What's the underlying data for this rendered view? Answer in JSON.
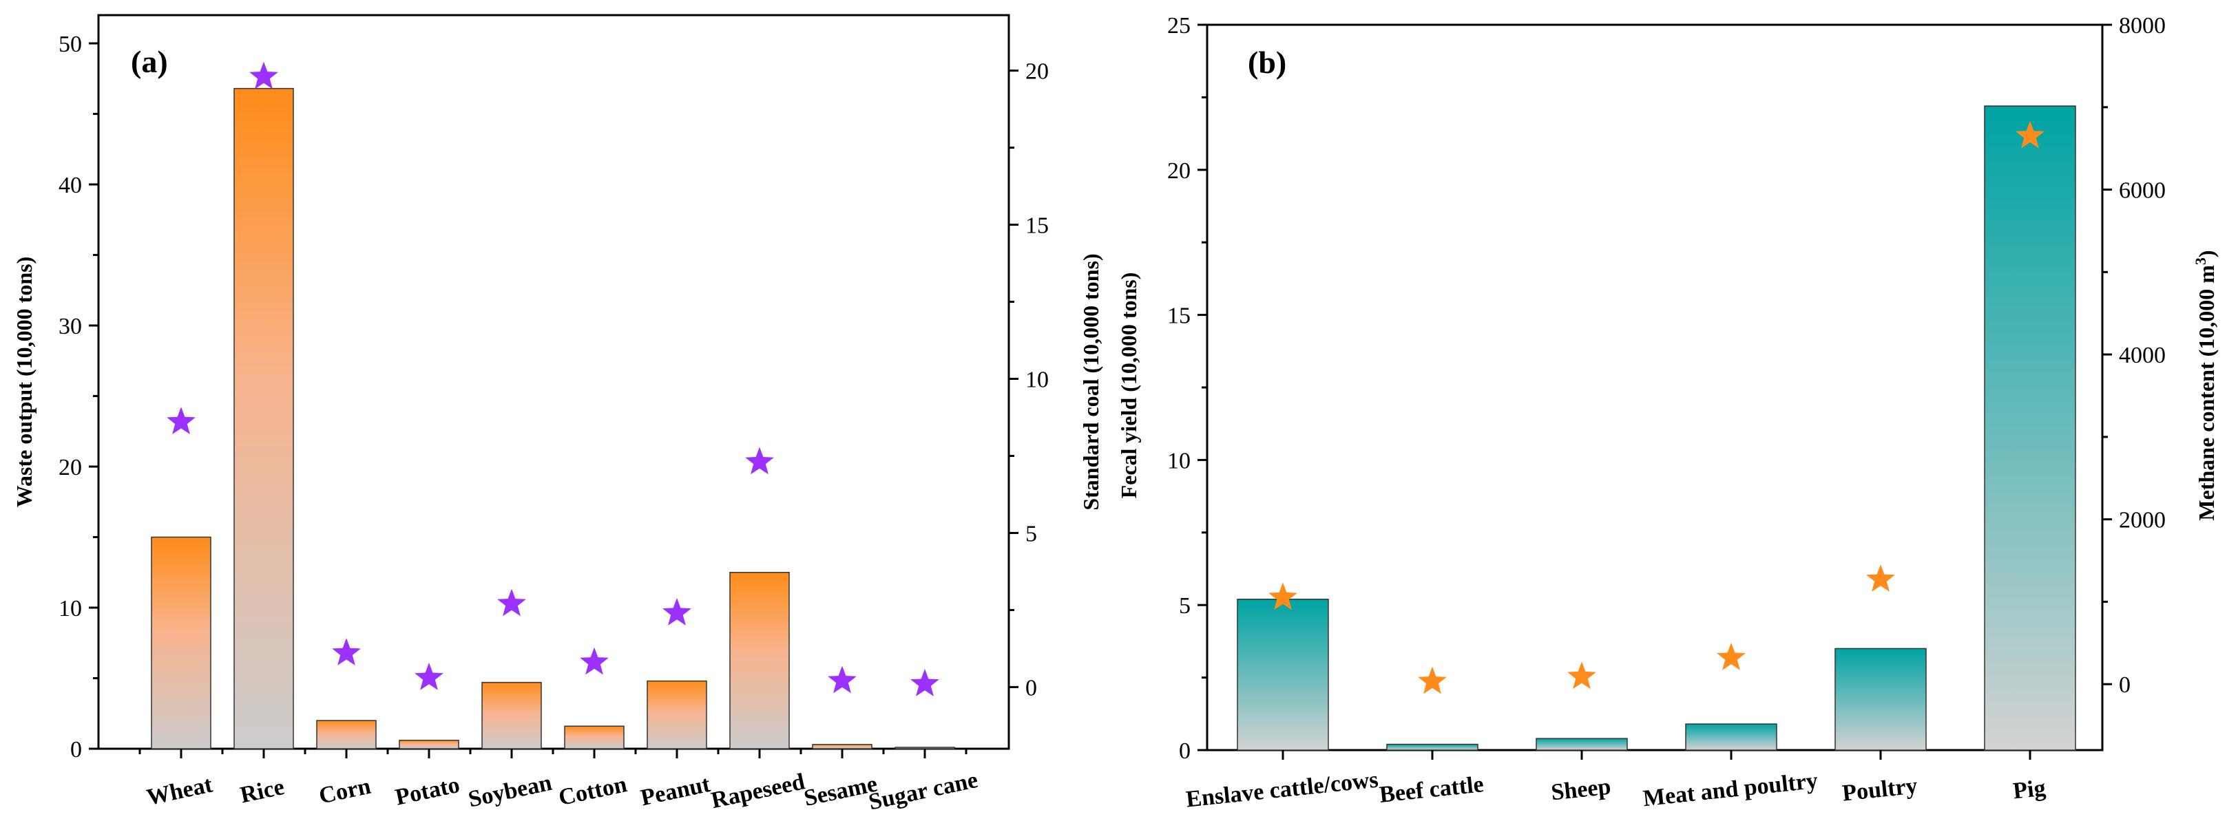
{
  "chart_data": [
    {
      "type": "bar",
      "panel_label": "(a)",
      "categories": [
        "Wheat",
        "Rice",
        "Corn",
        "Potato",
        "Soybean",
        "Cotton",
        "Peanut",
        "Rapeseed",
        "Sesame",
        "Sugar cane"
      ],
      "series": [
        {
          "name": "Waste output",
          "axis": "left",
          "marker": "bar",
          "values": [
            15.0,
            46.8,
            2.0,
            0.6,
            4.7,
            1.6,
            4.8,
            12.5,
            0.3,
            0.1
          ]
        },
        {
          "name": "Standard coal",
          "axis": "right",
          "marker": "star",
          "values": [
            8.6,
            19.8,
            1.1,
            0.3,
            2.7,
            0.8,
            2.4,
            7.3,
            0.2,
            0.1
          ]
        }
      ],
      "ylabel": "Waste output (10,000 tons)",
      "y2label": "Standard coal (10,000 tons)",
      "ylim": [
        0,
        52
      ],
      "y2lim": [
        -2,
        21.8
      ],
      "yticks": [
        0,
        10,
        20,
        30,
        40,
        50
      ],
      "y2ticks": [
        0,
        5,
        10,
        15,
        20
      ],
      "colors": {
        "bar_top": "#ff8c1a",
        "bar_bottom": "#cccccc",
        "marker": "#9b30ff"
      }
    },
    {
      "type": "bar",
      "panel_label": "(b)",
      "categories": [
        "Enslave cattle/cows",
        "Beef cattle",
        "Sheep",
        "Meat and poultry",
        "Poultry",
        "Pig"
      ],
      "series": [
        {
          "name": "Fecal yield",
          "axis": "left",
          "marker": "bar",
          "values": [
            5.2,
            0.2,
            0.4,
            0.9,
            3.5,
            22.2
          ]
        },
        {
          "name": "Methane content",
          "axis": "right",
          "marker": "star",
          "values": [
            1050,
            30,
            90,
            320,
            1270,
            6650
          ]
        }
      ],
      "ylabel": "Fecal yield (10,000 tons)",
      "y2label_main": "Methane content (10,000 m",
      "y2label_sup": "3",
      "y2label_end": ")",
      "ylim": [
        0,
        25
      ],
      "y2lim": [
        -800,
        8000
      ],
      "yticks": [
        0,
        5,
        10,
        15,
        20,
        25
      ],
      "y2ticks": [
        0,
        2000,
        4000,
        6000,
        8000
      ],
      "colors": {
        "bar_top": "#00a3a3",
        "bar_bottom": "#d3d3d3",
        "marker": "#ff8c1a"
      }
    }
  ]
}
